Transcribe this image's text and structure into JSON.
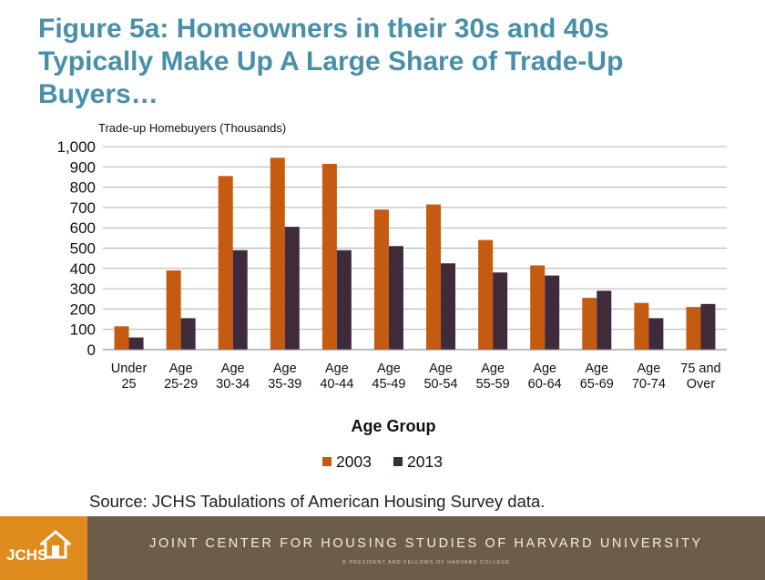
{
  "title": "Figure 5a: Homeowners in their 30s and 40s Typically Make Up A Large Share of Trade-Up Buyers…",
  "source": "Source: JCHS Tabulations of American Housing Survey data.",
  "footer": {
    "organization": "JOINT CENTER FOR HOUSING STUDIES OF HARVARD UNIVERSITY",
    "copyright": "© PRESIDENT AND FELLOWS OF HARVARD COLLEGE",
    "logo_text": "JCHS",
    "logo_icon": "house-icon"
  },
  "colors": {
    "title": "#4a8fa9",
    "series_2003": "#c55a11",
    "series_2013": "#3f2b3c",
    "footer_band": "#6b5d47",
    "footer_logo": "#e08b1e"
  },
  "chart_data": {
    "type": "bar",
    "ylabel": "Trade-up Homebuyers (Thousands)",
    "xlabel": "Age Group",
    "ylim": [
      0,
      1000
    ],
    "yticks": [
      "0",
      "100",
      "200",
      "300",
      "400",
      "500",
      "600",
      "700",
      "800",
      "900",
      "1,000"
    ],
    "grid": true,
    "legend": "bottom",
    "categories": [
      [
        "Under",
        "25"
      ],
      [
        "Age",
        "25-29"
      ],
      [
        "Age",
        "30-34"
      ],
      [
        "Age",
        "35-39"
      ],
      [
        "Age",
        "40-44"
      ],
      [
        "Age",
        "45-49"
      ],
      [
        "Age",
        "50-54"
      ],
      [
        "Age",
        "55-59"
      ],
      [
        "Age",
        "60-64"
      ],
      [
        "Age",
        "65-69"
      ],
      [
        "Age",
        "70-74"
      ],
      [
        "75 and",
        "Over"
      ]
    ],
    "series": [
      {
        "name": "2003",
        "color": "#c55a11",
        "values": [
          115,
          390,
          855,
          945,
          915,
          690,
          715,
          540,
          415,
          255,
          230,
          210
        ]
      },
      {
        "name": "2013",
        "color": "#3f2b3c",
        "values": [
          60,
          155,
          490,
          605,
          490,
          510,
          425,
          380,
          365,
          290,
          155,
          225
        ]
      }
    ]
  }
}
